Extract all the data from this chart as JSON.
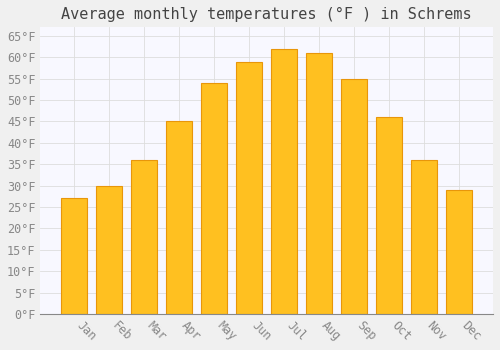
{
  "title": "Average monthly temperatures (°F ) in Schrems",
  "months": [
    "Jan",
    "Feb",
    "Mar",
    "Apr",
    "May",
    "Jun",
    "Jul",
    "Aug",
    "Sep",
    "Oct",
    "Nov",
    "Dec"
  ],
  "values": [
    27,
    30,
    36,
    45,
    54,
    59,
    62,
    61,
    55,
    46,
    36,
    29
  ],
  "bar_color": "#FFC020",
  "bar_edge_color": "#E8960A",
  "background_color": "#F0F0F0",
  "plot_bg_color": "#F8F8FF",
  "grid_color": "#DDDDDD",
  "text_color": "#888888",
  "ylim": [
    0,
    67
  ],
  "yticks": [
    0,
    5,
    10,
    15,
    20,
    25,
    30,
    35,
    40,
    45,
    50,
    55,
    60,
    65
  ],
  "title_fontsize": 11,
  "tick_fontsize": 8.5,
  "bar_width": 0.75
}
